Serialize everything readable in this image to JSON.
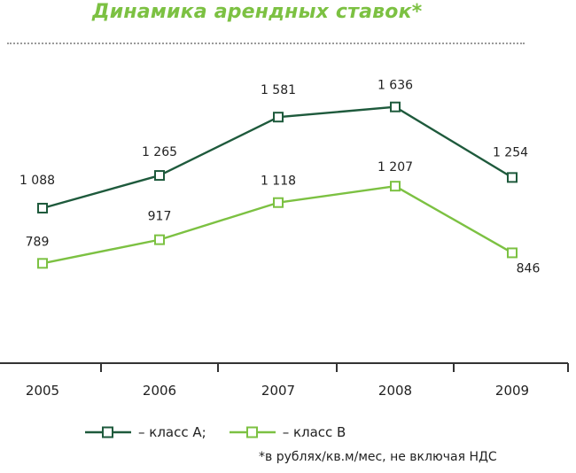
{
  "chart_data": {
    "type": "line",
    "title": "Динамика арендных ставок*",
    "categories": [
      "2005",
      "2006",
      "2007",
      "2008",
      "2009"
    ],
    "series": [
      {
        "name": "класс А",
        "legend_label": "– класс А;",
        "color": "#1e5a3c",
        "values": [
          1088,
          1265,
          1581,
          1636,
          1254
        ],
        "labels": [
          "1 088",
          "1 265",
          "1 581",
          "1 636",
          "1 254"
        ]
      },
      {
        "name": "класс В",
        "legend_label": "– класс В",
        "color": "#7cc142",
        "values": [
          789,
          917,
          1118,
          1207,
          846
        ],
        "labels": [
          "789",
          "917",
          "1 118",
          "1 207",
          "846"
        ]
      }
    ],
    "footnote": "*в рублях/кв.м/мес, не включая НДС",
    "grid": false,
    "legend_position": "bottom"
  }
}
